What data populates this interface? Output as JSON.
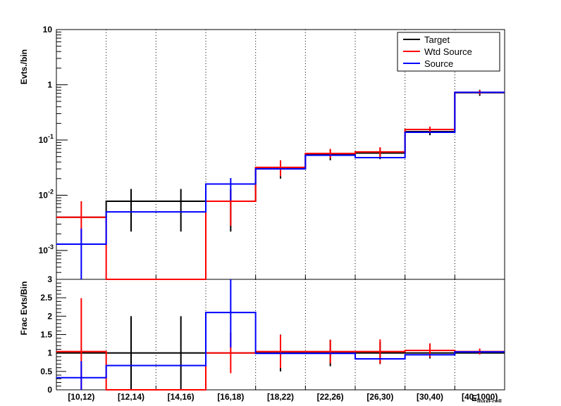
{
  "chart_data": [
    {
      "type": "step",
      "ylabel": "Evts./bin",
      "yscale": "log",
      "ylim": [
        0.0003,
        10
      ],
      "yticks": [
        {
          "value": 10,
          "label": "10"
        },
        {
          "value": 1,
          "label": "1"
        },
        {
          "value": 0.1,
          "base": "10",
          "exp": "-1"
        },
        {
          "value": 0.01,
          "base": "10",
          "exp": "-2"
        },
        {
          "value": 0.001,
          "base": "10",
          "exp": "-3"
        }
      ],
      "grid": "vertical dotted at bin edges",
      "legend_position": "top-right",
      "legend": [
        "Target",
        "Wtd Source",
        "Source"
      ],
      "series": [
        {
          "name": "Target",
          "color": "#000000",
          "values": [
            0.004,
            0.0078,
            0.0078,
            0.0078,
            0.031,
            0.055,
            0.058,
            0.142,
            0.72
          ],
          "err_lo": [
            0.004,
            0.0056,
            0.0056,
            0.0056,
            0.011,
            0.012,
            0.013,
            0.02,
            0.09
          ],
          "err_hi": [
            0.004,
            0.0052,
            0.0052,
            0.0052,
            0.011,
            0.012,
            0.013,
            0.02,
            0.09
          ],
          "err_bins": [
            1,
            2,
            3,
            4,
            5,
            6,
            7,
            8
          ]
        },
        {
          "name": "Wtd Source",
          "color": "#ff0000",
          "values": [
            0.004,
            0.0,
            0.0,
            0.0078,
            0.032,
            0.057,
            0.061,
            0.155,
            0.73
          ],
          "err_lo": [
            0.0025,
            0,
            0,
            0.005,
            0.01,
            0.01,
            0.013,
            0.02,
            0.06
          ],
          "err_hi": [
            0.0038,
            0,
            0,
            0.004,
            0.011,
            0.012,
            0.013,
            0.02,
            0.06
          ],
          "err_bins": [
            0,
            3,
            4,
            5,
            6,
            7,
            8
          ]
        },
        {
          "name": "Source",
          "color": "#0000ff",
          "values": [
            0.0013,
            0.005,
            0.005,
            0.016,
            0.03,
            0.053,
            0.048,
            0.138,
            0.73
          ],
          "err_lo": [
            0.0012,
            0.0028,
            0.0028,
            0.008,
            0.01,
            0.01,
            0.01,
            0.02,
            0.05
          ],
          "err_hi": [
            0.0012,
            0.0028,
            0.0028,
            0.0045,
            0.01,
            0.01,
            0.01,
            0.02,
            0.05
          ],
          "err_bins": [
            0,
            3
          ]
        }
      ]
    },
    {
      "type": "step",
      "ylabel": "Frac Evts/Bin",
      "xlabel": "E",
      "xlabel_subscript": "maxEcell",
      "ylim": [
        0,
        3
      ],
      "yticks": [
        "0",
        "0.5",
        "1",
        "1.5",
        "2",
        "2.5",
        "3"
      ],
      "categories": [
        "[10,12)",
        "[12,14)",
        "[14,16)",
        "[16,18)",
        "[18,22)",
        "[22,26)",
        "[26,30)",
        "[30,40)",
        "[40,1000)"
      ],
      "series": [
        {
          "name": "Target",
          "color": "#000000",
          "values": [
            1,
            1,
            1,
            1,
            1,
            1,
            1,
            1,
            1
          ],
          "err": [
            0,
            1,
            1,
            0,
            0.5,
            0.36,
            0.3,
            0.15,
            0.08
          ],
          "err_bins": [
            1,
            2,
            4,
            5,
            6,
            7
          ]
        },
        {
          "name": "Wtd Source",
          "color": "#ff0000",
          "values": [
            1.04,
            0.0,
            0.0,
            1.0,
            1.04,
            1.04,
            1.04,
            1.07,
            1.04
          ],
          "err": [
            1.45,
            0,
            0,
            0.55,
            0.45,
            0.32,
            0.33,
            0.19,
            0.08
          ],
          "err_bins": [
            0,
            3,
            4,
            5,
            6,
            7,
            8
          ]
        },
        {
          "name": "Source",
          "color": "#0000ff",
          "values": [
            0.33,
            0.66,
            0.66,
            2.1,
            0.99,
            0.99,
            0.84,
            0.95,
            1.03
          ],
          "err": [
            0.45,
            0,
            0,
            0.95,
            0.25,
            0.25,
            0.25,
            0.12,
            0.06
          ],
          "err_bins": [
            0,
            3
          ]
        }
      ]
    }
  ]
}
